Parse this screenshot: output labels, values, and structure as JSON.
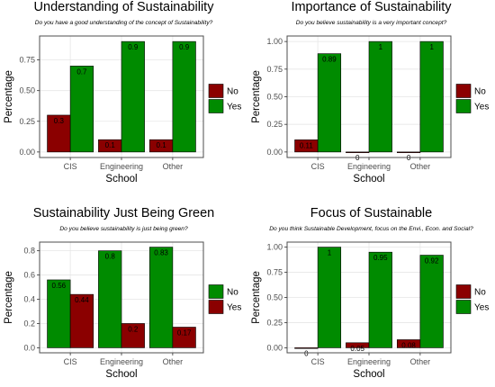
{
  "colors": {
    "No": "#8b0000",
    "Yes": "#008b00",
    "panel_border": "#4d4d4d",
    "grid": "#e6e6e6"
  },
  "chart_data": [
    {
      "type": "bar",
      "title": "Understanding of Sustainability",
      "subtitle": "Do you have a good understanding of the concept of Sustainability?",
      "xlabel": "School",
      "ylabel": "Percentage",
      "categories": [
        "CIS",
        "Engineering",
        "Other"
      ],
      "series": [
        {
          "name": "No",
          "color": "#8b0000",
          "values": [
            0.3,
            0.1,
            0.1
          ],
          "labels": [
            "0.3",
            "0.1",
            "0.1"
          ]
        },
        {
          "name": "Yes",
          "color": "#008b00",
          "values": [
            0.7,
            0.9,
            0.9
          ],
          "labels": [
            "0.7",
            "0.9",
            "0.9"
          ]
        }
      ],
      "ylim": [
        0,
        0.9
      ],
      "yticks": [
        "0.00",
        "0.25",
        "0.50",
        "0.75"
      ],
      "ytick_values": [
        0,
        0.25,
        0.5,
        0.75
      ],
      "grid": true,
      "legend": "right"
    },
    {
      "type": "bar",
      "title": "Importance of Sustainability",
      "subtitle": "Do you believe sustainability is a very important concept?",
      "xlabel": "School",
      "ylabel": "Percentage",
      "categories": [
        "CIS",
        "Engineering",
        "Other"
      ],
      "series": [
        {
          "name": "No",
          "color": "#8b0000",
          "values": [
            0.11,
            0,
            0
          ],
          "labels": [
            "0.11",
            "0",
            "0"
          ]
        },
        {
          "name": "Yes",
          "color": "#008b00",
          "values": [
            0.89,
            1,
            1
          ],
          "labels": [
            "0.89",
            "1",
            "1"
          ]
        }
      ],
      "ylim": [
        0,
        1
      ],
      "yticks": [
        "0.00",
        "0.25",
        "0.50",
        "0.75",
        "1.00"
      ],
      "ytick_values": [
        0,
        0.25,
        0.5,
        0.75,
        1
      ],
      "grid": true,
      "legend": "right"
    },
    {
      "type": "bar",
      "title": "Sustainability Just Being Green",
      "subtitle": "Do you believe sustainability is just being green?",
      "xlabel": "School",
      "ylabel": "Percentage",
      "categories": [
        "CIS",
        "Engineering",
        "Other"
      ],
      "series": [
        {
          "name": "No",
          "color": "#008b00",
          "values": [
            0.56,
            0.8,
            0.83
          ],
          "labels": [
            "0.56",
            "0.8",
            "0.83"
          ]
        },
        {
          "name": "Yes",
          "color": "#8b0000",
          "values": [
            0.44,
            0.2,
            0.17
          ],
          "labels": [
            "0.44",
            "0.2",
            "0.17"
          ]
        }
      ],
      "ylim": [
        0,
        0.83
      ],
      "yticks": [
        "0.0",
        "0.2",
        "0.4",
        "0.6",
        "0.8"
      ],
      "ytick_values": [
        0,
        0.2,
        0.4,
        0.6,
        0.8
      ],
      "grid": true,
      "legend": "right"
    },
    {
      "type": "bar",
      "title": "Focus of Sustainable",
      "subtitle": "Do you think Sustainable Development, focus on the Envi., Econ. and Social?",
      "xlabel": "School",
      "ylabel": "Percentage",
      "categories": [
        "CIS",
        "Engineering",
        "Other"
      ],
      "series": [
        {
          "name": "No",
          "color": "#8b0000",
          "values": [
            0,
            0.05,
            0.08
          ],
          "labels": [
            "0",
            "0.05",
            "0.08"
          ]
        },
        {
          "name": "Yes",
          "color": "#008b00",
          "values": [
            1,
            0.95,
            0.92
          ],
          "labels": [
            "1",
            "0.95",
            "0.92"
          ]
        }
      ],
      "ylim": [
        0,
        1
      ],
      "yticks": [
        "0.00",
        "0.25",
        "0.50",
        "0.75",
        "1.00"
      ],
      "ytick_values": [
        0,
        0.25,
        0.5,
        0.75,
        1
      ],
      "grid": true,
      "legend": "right"
    }
  ]
}
